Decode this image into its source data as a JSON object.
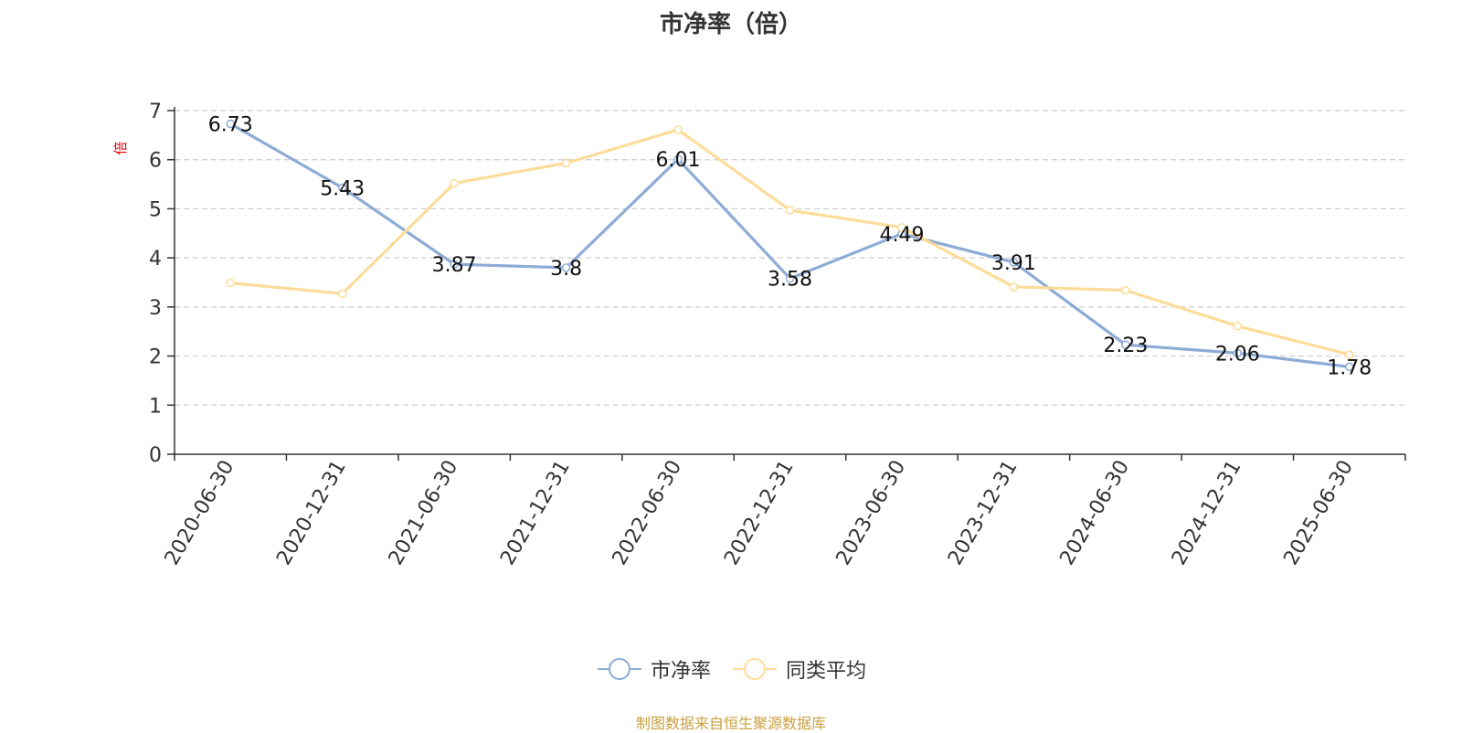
{
  "colors": {
    "pb_series": "#8eabd5",
    "avg_series": "#fddc9a",
    "axis": "#333333",
    "grid": "#cccccc",
    "unit_label": "#e00000",
    "source_note": "#c8a040"
  },
  "legend_icon": "circle-line-marker",
  "source_note": "制图数据来自恒生聚源数据库",
  "chart_data": {
    "type": "line",
    "title": "市净率（倍）",
    "xlabel": "",
    "ylabel": "倍",
    "ylim": [
      0,
      7
    ],
    "yticks": [
      0,
      1,
      2,
      3,
      4,
      5,
      6,
      7
    ],
    "grid": true,
    "legend_position": "bottom-center",
    "x": [
      "2020-06-30",
      "2020-12-31",
      "2021-06-30",
      "2021-12-31",
      "2022-06-30",
      "2022-12-31",
      "2023-06-30",
      "2023-12-31",
      "2024-06-30",
      "2024-12-31",
      "2025-06-30"
    ],
    "series": [
      {
        "name": "市净率",
        "values": [
          6.73,
          5.43,
          3.87,
          3.8,
          6.01,
          3.58,
          4.49,
          3.91,
          2.23,
          2.06,
          1.78
        ],
        "data_labels": [
          "6.73",
          "5.43",
          "3.87",
          "3.8",
          "6.01",
          "3.58",
          "4.49",
          "3.91",
          "2.23",
          "2.06",
          "1.78"
        ]
      },
      {
        "name": "同类平均",
        "values": [
          3.49,
          3.27,
          5.52,
          5.93,
          6.61,
          4.97,
          4.62,
          3.41,
          3.34,
          2.61,
          2.03
        ]
      }
    ]
  }
}
